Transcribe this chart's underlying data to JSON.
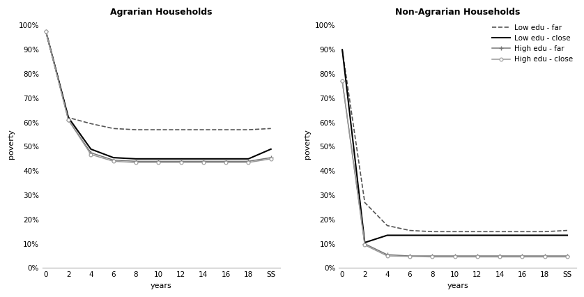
{
  "x_ticks": [
    0,
    2,
    4,
    6,
    8,
    10,
    12,
    14,
    16,
    18,
    "SS"
  ],
  "x_numeric": [
    0,
    2,
    4,
    6,
    8,
    10,
    12,
    14,
    16,
    18,
    20
  ],
  "agrarian": {
    "title": "Agrarian Households",
    "low_edu_far": [
      0.975,
      0.62,
      0.595,
      0.575,
      0.57,
      0.57,
      0.57,
      0.57,
      0.57,
      0.57,
      0.575
    ],
    "low_edu_close": [
      0.975,
      0.62,
      0.49,
      0.455,
      0.45,
      0.45,
      0.45,
      0.45,
      0.45,
      0.45,
      0.49
    ],
    "high_edu_far": [
      0.975,
      0.61,
      0.475,
      0.445,
      0.44,
      0.44,
      0.44,
      0.44,
      0.44,
      0.44,
      0.455
    ],
    "high_edu_close": [
      0.975,
      0.61,
      0.468,
      0.44,
      0.435,
      0.435,
      0.435,
      0.435,
      0.435,
      0.435,
      0.45
    ]
  },
  "non_agrarian": {
    "title": "Non-Agrarian Households",
    "low_edu_far": [
      0.9,
      0.27,
      0.175,
      0.155,
      0.15,
      0.15,
      0.15,
      0.15,
      0.15,
      0.15,
      0.155
    ],
    "low_edu_close": [
      0.9,
      0.105,
      0.135,
      0.135,
      0.135,
      0.135,
      0.135,
      0.135,
      0.135,
      0.135,
      0.135
    ],
    "high_edu_far": [
      0.77,
      0.1,
      0.055,
      0.05,
      0.05,
      0.05,
      0.05,
      0.05,
      0.05,
      0.05,
      0.05
    ],
    "high_edu_close": [
      0.77,
      0.095,
      0.05,
      0.048,
      0.046,
      0.046,
      0.046,
      0.046,
      0.046,
      0.046,
      0.046
    ]
  },
  "legend_labels": [
    "Low edu - far",
    "Low edu - close",
    "High edu - far",
    "High edu - close"
  ],
  "ylabel": "poverty",
  "xlabel": "years",
  "colors": {
    "low_edu_far": "#555555",
    "low_edu_close": "#000000",
    "high_edu_far": "#777777",
    "high_edu_close": "#999999"
  },
  "figsize": [
    8.38,
    4.26
  ],
  "dpi": 100
}
